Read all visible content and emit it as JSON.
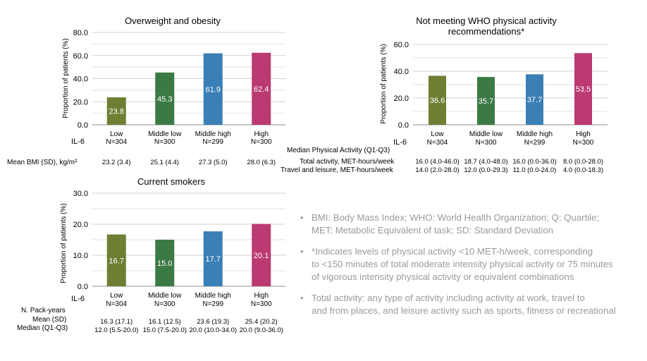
{
  "charts": [
    {
      "key": "c1",
      "title_lines": [
        "Overweight and obesity"
      ],
      "ylabel": "Proportion of patients (%)",
      "yticks": [
        "0.0",
        "20.0",
        "40.0",
        "60.0",
        "80.0"
      ],
      "row_label": "IL-6",
      "extra_labels": [
        "Mean BMI (SD), kg/m²"
      ],
      "extra_rows": [
        [
          "23.2 (3.4)",
          "25.1 (4.4)",
          "27.3 (5.0)",
          "28.0 (6.3)"
        ]
      ]
    },
    {
      "key": "c2",
      "title_lines": [
        "Not meeting WHO physical activity",
        "recommendations*"
      ],
      "ylabel": "Proportion of patients (%)",
      "yticks": [
        "0.0",
        "20.0",
        "40.0",
        "60.0"
      ],
      "row_label": "IL-6",
      "extra_labels": [
        "Median Physical Activity (Q1-Q3)",
        "Total activity, MET-hours/week",
        "Travel and leisure, MET-hours/week"
      ],
      "extra_rows": [
        [
          "16.0 (4.0-46.0)",
          "18.7 (4.0-48.0)",
          "16.0 (0.0-36.0)",
          "8.0 (0.0-28.0)"
        ],
        [
          "14.0 (2.0-28.0)",
          "12.0 (0.0-29.3)",
          "11.0 (0.0-24.0)",
          "4.0 (0.0-18.3)"
        ]
      ]
    },
    {
      "key": "c3",
      "title_lines": [
        "Current smokers"
      ],
      "ylabel": "Proportion of patients (%)",
      "yticks": [
        "0.0",
        "10.0",
        "20.0",
        "30.0"
      ],
      "row_label": "IL-6",
      "extra_labels": [
        "N. Pack-years",
        "Mean (SD)",
        "Median (Q1-Q3)"
      ],
      "extra_rows": [
        [
          "16.3 (17.1)",
          "16.1 (12.5)",
          "23.6 (19.3)",
          "25.4 (20.2)"
        ],
        [
          "12.0 (5.5-20.0)",
          "15.0 (7.5-20.0)",
          "20.0 (10.0-34.0)",
          "20.0 (9.0-36.0)"
        ]
      ]
    }
  ],
  "chart_data": [
    {
      "type": "bar",
      "title": "Overweight and obesity",
      "ylabel": "Proportion of patients (%)",
      "categories": [
        "Low",
        "Middle low",
        "Middle high",
        "High"
      ],
      "n_labels": [
        "N=304",
        "N=300",
        "N=299",
        "N=300"
      ],
      "values": [
        23.8,
        45.3,
        61.9,
        62.4
      ],
      "value_labels": [
        "23.8",
        "45.3",
        "61.9",
        "62.4"
      ],
      "colors": [
        "#6e7f33",
        "#3c7a45",
        "#3a7fb5",
        "#bb3a72"
      ],
      "ylim": [
        0,
        80
      ],
      "grid": true
    },
    {
      "type": "bar",
      "title": "Not meeting WHO physical activity recommendations*",
      "ylabel": "Proportion of patients (%)",
      "categories": [
        "Low",
        "Middle low",
        "Middle high",
        "High"
      ],
      "n_labels": [
        "N=304",
        "N=300",
        "N=299",
        "N=300"
      ],
      "values": [
        36.6,
        35.7,
        37.7,
        53.5
      ],
      "value_labels": [
        "36.6",
        "35.7",
        "37.7",
        "53.5"
      ],
      "colors": [
        "#6e7f33",
        "#3c7a45",
        "#3a7fb5",
        "#bb3a72"
      ],
      "ylim": [
        0,
        60
      ],
      "grid": true
    },
    {
      "type": "bar",
      "title": "Current smokers",
      "ylabel": "Proportion of patients (%)",
      "categories": [
        "Low",
        "Middle low",
        "Middle high",
        "High"
      ],
      "n_labels": [
        "N=304",
        "N=300",
        "N=299",
        "N=300"
      ],
      "values": [
        16.7,
        15.0,
        17.7,
        20.1
      ],
      "value_labels": [
        "16.7",
        "15.0",
        "17.7",
        "20.1"
      ],
      "colors": [
        "#6e7f33",
        "#3c7a45",
        "#3a7fb5",
        "#bb3a72"
      ],
      "ylim": [
        0,
        30
      ],
      "grid": true
    }
  ],
  "notes": [
    {
      "bullet": "•",
      "lines": [
        "BMI: Body Mass Index; WHO: World Health Organization; Q: Quartile;",
        "MET: Metabolic Equivalent of task; SD: Standard Deviation"
      ]
    },
    {
      "bullet": "•",
      "lines": [
        "*Indicates levels of physical activity <10 MET-h/week, corresponding",
        "to <150 minutes of total moderate intensity physical activity or 75 minutes",
        "of vigorous intensity physical activity or equivalent combinations"
      ]
    },
    {
      "bullet": "•",
      "lines": [
        "Total activity: any type of activity including activity at work, travel to",
        "and from places, and leisure activity such as sports, fitness or recreational"
      ]
    }
  ]
}
